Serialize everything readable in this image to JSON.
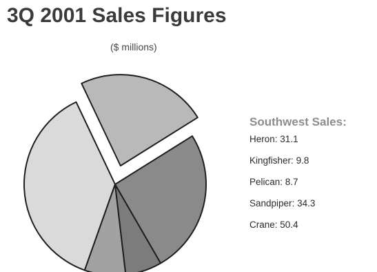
{
  "chart_data": {
    "type": "pie",
    "title": "3Q 2001 Sales Figures",
    "subtitle": "($ millions)",
    "legend_title": "Southwest Sales:",
    "legend_placement": "right",
    "slices": [
      {
        "label": "Heron",
        "value": 31.1,
        "color": "#b9b9b9",
        "exploded": true
      },
      {
        "label": "Kingfisher",
        "value": 9.8,
        "color": "#a2a2a2",
        "exploded": false
      },
      {
        "label": "Pelican",
        "value": 8.7,
        "color": "#7c7c7c",
        "exploded": false
      },
      {
        "label": "Sandpiper",
        "value": 34.3,
        "color": "#8a8a8a",
        "exploded": false
      },
      {
        "label": "Crane",
        "value": 50.4,
        "color": "#dadada",
        "exploded": false
      }
    ],
    "value_separator": ": ",
    "outline_color": "#1e1e1e"
  }
}
